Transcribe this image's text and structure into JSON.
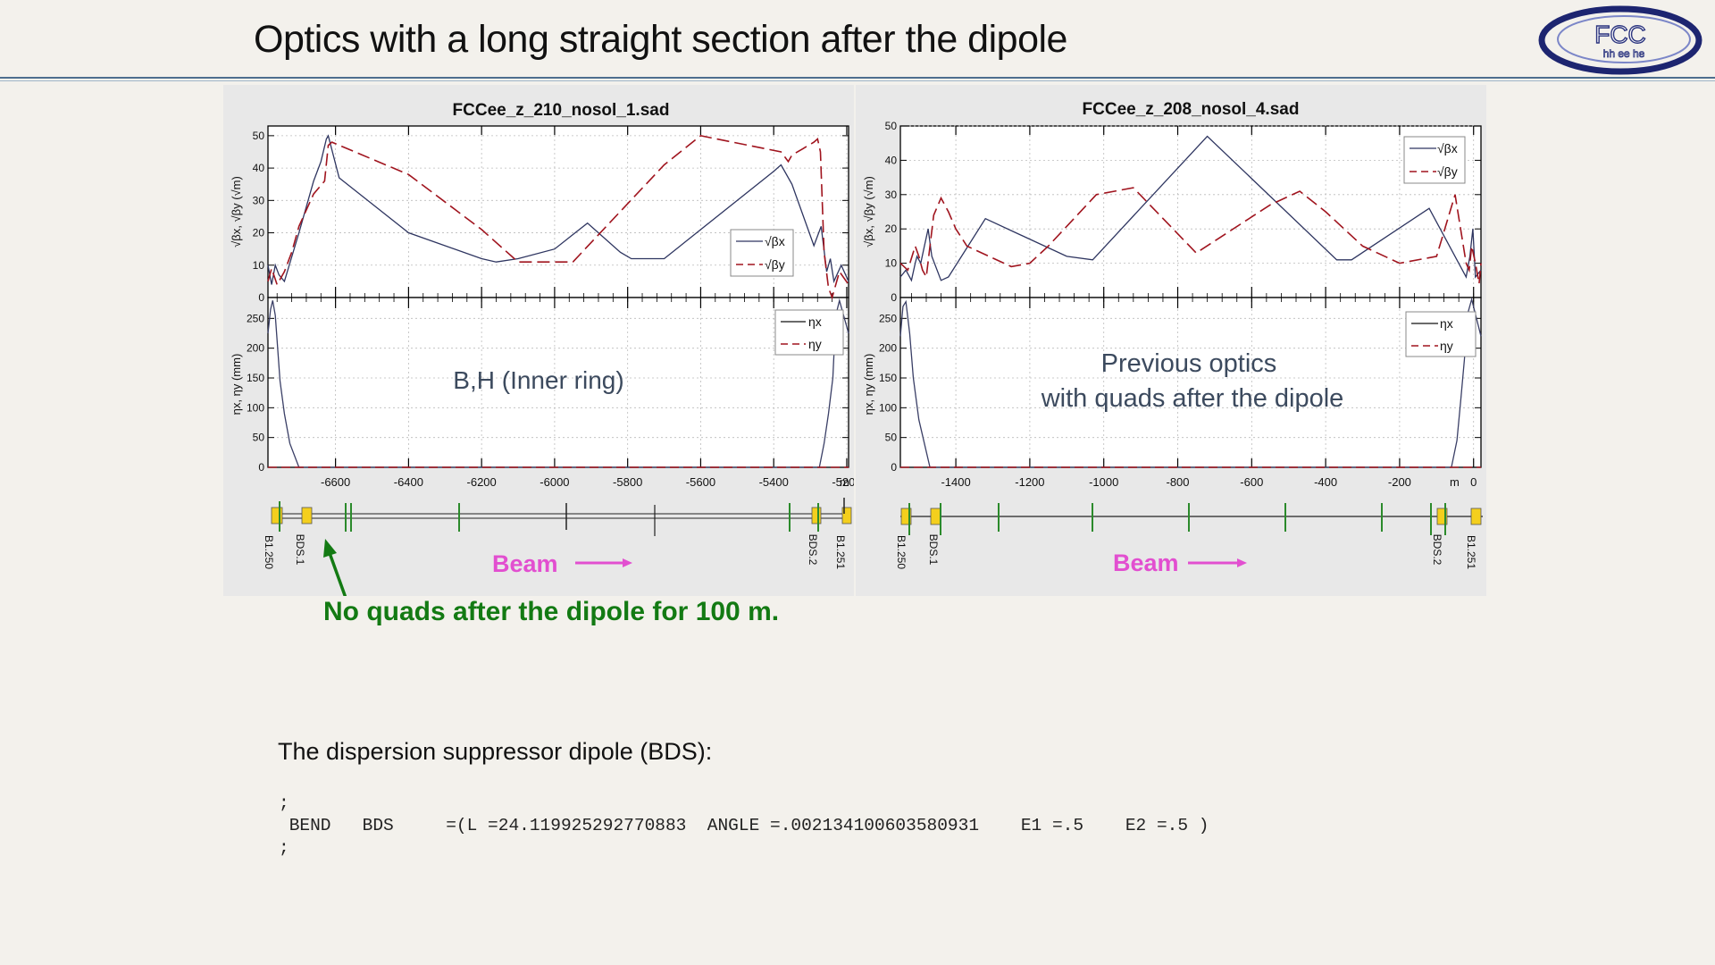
{
  "slide": {
    "title": "Optics with a long straight section after the dipole",
    "logo_text": "FCC",
    "logo_subtext": "hh ee he",
    "annotation": "No quads after the dipole for 100 m.",
    "caption": "The dispersion suppressor dipole (BDS):",
    "code_lines": [
      ";",
      " BEND   BDS     =(L =24.119925292770883  ANGLE =.002134100603580931    E1 =.5    E2 =.5 )",
      ";"
    ],
    "colors": {
      "accent": "#137a13",
      "beam": "#e24fd0",
      "beta_y": "#a0141e",
      "beta_x": "#2e3560"
    }
  },
  "chart_data": [
    {
      "type": "line",
      "title": "FCCee_z_210_nosol_1.sad",
      "note": "B,H (Inner ring)",
      "x_unit": "m",
      "xlim": [
        -6785,
        -5195
      ],
      "xticks": [
        -6600,
        -6400,
        -6200,
        -6000,
        -5800,
        -5600,
        -5400,
        -5200
      ],
      "beta": {
        "ylabel": "√βx, √βy (√m)",
        "ylim": [
          0,
          53
        ],
        "yticks": [
          0,
          10,
          20,
          30,
          40,
          50
        ],
        "legend": [
          "√βx",
          "√βy"
        ],
        "legend_position": "right",
        "series": [
          {
            "key": "bx",
            "x": [
              -6785,
              -6775,
              -6765,
              -6755,
              -6740,
              -6700,
              -6660,
              -6640,
              -6625,
              -6620,
              -6590,
              -6400,
              -6200,
              -6160,
              -6100,
              -6000,
              -5910,
              -5820,
              -5790,
              -5700,
              -5400,
              -5380,
              -5350,
              -5290,
              -5270,
              -5255,
              -5245,
              -5235,
              -5215,
              -5195
            ],
            "y": [
              10,
              4,
              10,
              7,
              5,
              20,
              36,
              42,
              49,
              50,
              37,
              20,
              12,
              11,
              12,
              15,
              23,
              14,
              12,
              12,
              39,
              41,
              35,
              16,
              22,
              8,
              12,
              5,
              10,
              5
            ]
          },
          {
            "key": "by",
            "x": [
              -6785,
              -6775,
              -6760,
              -6740,
              -6720,
              -6700,
              -6660,
              -6630,
              -6620,
              -6610,
              -6400,
              -6200,
              -6100,
              -5950,
              -5900,
              -5700,
              -5600,
              -5380,
              -5360,
              -5350,
              -5320,
              -5290,
              -5280,
              -5272,
              -5262,
              -5250,
              -5240,
              -5220,
              -5195
            ],
            "y": [
              5,
              9,
              4,
              8,
              14,
              22,
              32,
              36,
              47,
              48,
              38,
              21,
              11,
              11,
              17,
              41,
              50,
              45,
              42,
              44,
              46,
              48,
              49,
              45,
              14,
              3,
              0,
              8,
              4
            ]
          }
        ]
      },
      "eta": {
        "ylabel": "ηx, ηy (mm)",
        "ylim": [
          0,
          285
        ],
        "yticks": [
          0,
          50,
          100,
          150,
          200,
          250
        ],
        "legend": [
          "ηx",
          "ηy"
        ],
        "legend_position": "top-right",
        "series": [
          {
            "key": "ex",
            "x": [
              -6785,
              -6778,
              -6772,
              -6765,
              -6752,
              -6740,
              -6725,
              -6700,
              -5300,
              -5275,
              -5262,
              -5250,
              -5238,
              -5230,
              -5220,
              -5195
            ],
            "y": [
              225,
              265,
              280,
              255,
              145,
              90,
              40,
              0,
              0,
              0,
              40,
              90,
              150,
              255,
              280,
              225
            ]
          },
          {
            "key": "ey",
            "x": [
              -6785,
              -5195
            ],
            "y": [
              0,
              0
            ]
          }
        ]
      },
      "lattice": {
        "beam_label": "Beam",
        "element_labels": [
          "B1.250",
          "BDS.1",
          "BDS.2",
          "B1.251"
        ]
      }
    },
    {
      "type": "line",
      "title": "FCCee_z_208_nosol_4.sad",
      "note": "Previous optics\nwith quads after the dipole",
      "x_unit": "m",
      "xlim": [
        -1550,
        20
      ],
      "xticks": [
        -1400,
        -1200,
        -1000,
        -800,
        -600,
        -400,
        -200,
        0
      ],
      "beta": {
        "ylabel": "√βx, √βy (√m)",
        "ylim": [
          0,
          50
        ],
        "yticks": [
          0,
          10,
          20,
          30,
          40,
          50
        ],
        "legend": [
          "√βx",
          "√βy"
        ],
        "legend_position": "top-right",
        "series": [
          {
            "key": "bx",
            "x": [
              -1550,
              -1535,
              -1520,
              -1510,
              -1505,
              -1495,
              -1485,
              -1475,
              -1465,
              -1440,
              -1420,
              -1320,
              -1100,
              -1030,
              -720,
              -370,
              -330,
              -120,
              -20,
              -10,
              -2,
              5,
              20
            ],
            "y": [
              6,
              8,
              5,
              10,
              12,
              10,
              15,
              20,
              12,
              5,
              6,
              23,
              12,
              11,
              47,
              11,
              11,
              26,
              6,
              12,
              20,
              6,
              8
            ]
          },
          {
            "key": "by",
            "x": [
              -1550,
              -1530,
              -1510,
              -1500,
              -1490,
              -1480,
              -1460,
              -1440,
              -1420,
              -1400,
              -1370,
              -1250,
              -1200,
              -1150,
              -1020,
              -920,
              -750,
              -550,
              -470,
              -400,
              -300,
              -200,
              -100,
              -50,
              -20,
              -12,
              -5,
              5,
              15,
              20
            ],
            "y": [
              10,
              8,
              15,
              12,
              8,
              6,
              24,
              29,
              25,
              20,
              15,
              9,
              10,
              15,
              30,
              32,
              13,
              27,
              31,
              25,
              15,
              10,
              12,
              30,
              10,
              8,
              15,
              10,
              4,
              10
            ]
          }
        ]
      },
      "eta": {
        "ylabel": "ηx, ηy (mm)",
        "ylim": [
          0,
          285
        ],
        "yticks": [
          0,
          50,
          100,
          150,
          200,
          250
        ],
        "legend": [
          "ηx",
          "ηy"
        ],
        "legend_position": "top-right",
        "series": [
          {
            "key": "ex",
            "x": [
              -1550,
              -1543,
              -1535,
              -1525,
              -1515,
              -1500,
              -1470,
              -60,
              -45,
              -35,
              -25,
              -15,
              -5,
              20
            ],
            "y": [
              220,
              270,
              278,
              225,
              150,
              80,
              0,
              0,
              45,
              110,
              180,
              260,
              282,
              220
            ]
          },
          {
            "key": "ey",
            "x": [
              -1550,
              20
            ],
            "y": [
              0,
              0
            ]
          }
        ]
      },
      "lattice": {
        "beam_label": "Beam",
        "element_labels": [
          "B1.250",
          "BDS.1",
          "BDS.2",
          "B1.251"
        ]
      }
    }
  ]
}
